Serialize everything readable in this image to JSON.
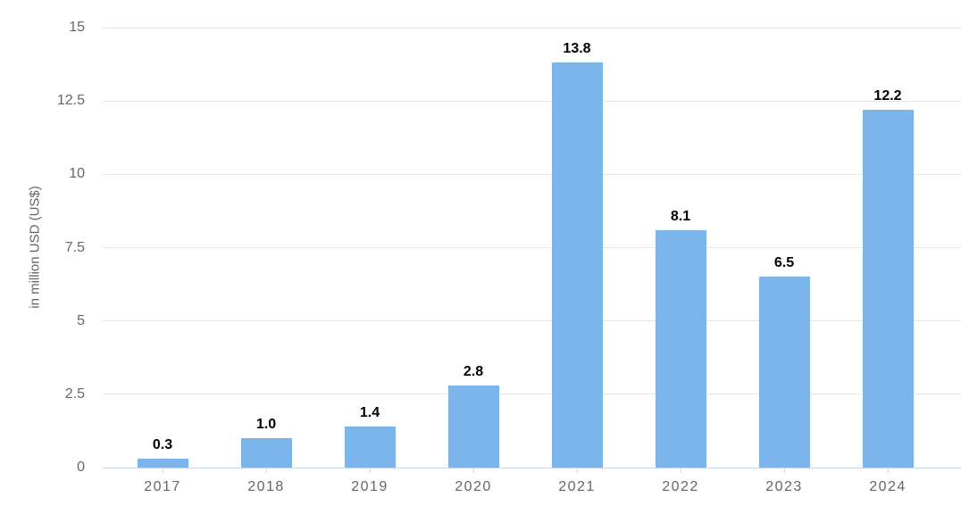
{
  "chart_data": {
    "type": "bar",
    "title": "",
    "categories": [
      "2017",
      "2018",
      "2019",
      "2020",
      "2021",
      "2022",
      "2023",
      "2024"
    ],
    "values": [
      0.3,
      1.0,
      1.4,
      2.8,
      13.8,
      8.1,
      6.5,
      12.2
    ],
    "data_labels": [
      "0.3",
      "1.0",
      "1.4",
      "2.8",
      "13.8",
      "8.1",
      "6.5",
      "12.2"
    ],
    "xlabel": "",
    "ylabel": "in million USD (US$)",
    "ylim": [
      0,
      15
    ],
    "ytick_interval": 2.5,
    "ytick_labels": [
      "0",
      "2.5",
      "5",
      "7.5",
      "10",
      "12.5",
      "15"
    ],
    "grid": true,
    "legend_position": "none",
    "colors": {
      "bar": "#7cb5ec",
      "gridline": "#e6e6e6",
      "axis_line": "#ccd6eb",
      "tick": "#ccd6eb",
      "axis_text": "#666666",
      "data_label": "#000000",
      "background": "#ffffff"
    }
  }
}
